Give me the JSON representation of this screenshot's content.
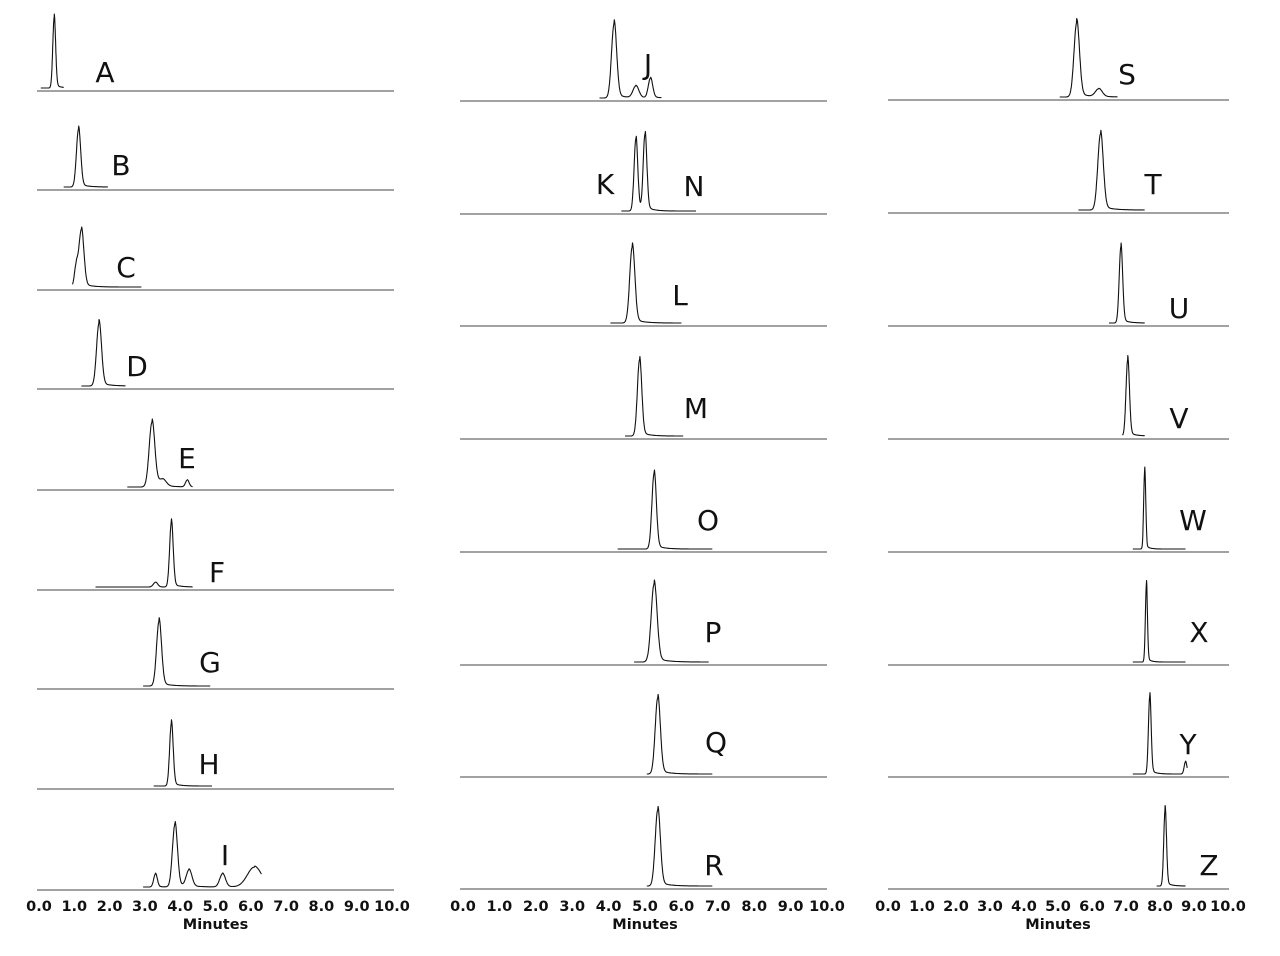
{
  "chart_data": {
    "type": "line",
    "panels": [
      {
        "xlabel": "Minutes",
        "xlim": [
          0,
          10
        ],
        "xticks": [
          "0.0",
          "1.0",
          "2.0",
          "3.0",
          "4.0",
          "5.0",
          "6.0",
          "7.0",
          "8.0",
          "9.0",
          "10.0"
        ],
        "traces": [
          {
            "label": "A",
            "start": 0.05,
            "end": 0.7,
            "peaks": [
              [
                0.43,
                1.0,
                0.04
              ]
            ]
          },
          {
            "label": "B",
            "start": 0.7,
            "end": 1.95,
            "peaks": [
              [
                1.12,
                0.9,
                0.06
              ]
            ]
          },
          {
            "label": "C",
            "start": 0.95,
            "end": 2.9,
            "peaks": [
              [
                1.2,
                0.9,
                0.07
              ],
              [
                1.05,
                0.3,
                0.05
              ]
            ]
          },
          {
            "label": "D",
            "start": 1.2,
            "end": 2.45,
            "peaks": [
              [
                1.7,
                0.95,
                0.07
              ]
            ]
          },
          {
            "label": "E",
            "start": 2.5,
            "end": 4.35,
            "peaks": [
              [
                3.2,
                0.95,
                0.08
              ],
              [
                3.5,
                0.1,
                0.1
              ],
              [
                4.2,
                0.1,
                0.05
              ]
            ]
          },
          {
            "label": "F",
            "start": 1.6,
            "end": 4.35,
            "peaks": [
              [
                3.75,
                0.95,
                0.05
              ],
              [
                3.3,
                0.07,
                0.06
              ]
            ]
          },
          {
            "label": "G",
            "start": 2.95,
            "end": 4.85,
            "peaks": [
              [
                3.4,
                0.95,
                0.07
              ]
            ]
          },
          {
            "label": "H",
            "start": 3.25,
            "end": 4.9,
            "peaks": [
              [
                3.75,
                0.95,
                0.05
              ]
            ]
          },
          {
            "label": "I",
            "start": 2.95,
            "end": 6.3,
            "peaks": [
              [
                3.85,
                0.95,
                0.07
              ],
              [
                3.3,
                0.2,
                0.05
              ],
              [
                4.25,
                0.25,
                0.08
              ],
              [
                5.2,
                0.2,
                0.08
              ],
              [
                6.1,
                0.3,
                0.2
              ]
            ]
          }
        ]
      },
      {
        "xlabel": "Minutes",
        "xlim": [
          0,
          10
        ],
        "xticks": [
          "0.0",
          "1.0",
          "2.0",
          "3.0",
          "4.0",
          "5.0",
          "6.0",
          "7.0",
          "8.0",
          "9.0",
          "10.0"
        ],
        "traces": [
          {
            "label": "J",
            "start": 3.75,
            "end": 5.45,
            "peaks": [
              [
                4.15,
                0.95,
                0.07
              ],
              [
                4.75,
                0.15,
                0.08
              ],
              [
                5.15,
                0.25,
                0.06
              ]
            ]
          },
          {
            "label": "K",
            "start": 4.35,
            "end": 6.4,
            "peaks": [
              [
                4.75,
                0.9,
                0.05
              ],
              [
                5.0,
                0.95,
                0.05
              ]
            ]
          },
          {
            "label": "N",
            "start": 0,
            "end": 0,
            "peaks": []
          },
          {
            "label": "L",
            "start": 4.05,
            "end": 6.0,
            "peaks": [
              [
                4.65,
                0.95,
                0.07
              ]
            ]
          },
          {
            "label": "M",
            "start": 4.45,
            "end": 6.05,
            "peaks": [
              [
                4.85,
                0.95,
                0.06
              ]
            ]
          },
          {
            "label": "O",
            "start": 4.25,
            "end": 6.85,
            "peaks": [
              [
                5.25,
                0.95,
                0.06
              ]
            ]
          },
          {
            "label": "P",
            "start": 4.7,
            "end": 6.75,
            "peaks": [
              [
                5.25,
                0.95,
                0.08
              ]
            ]
          },
          {
            "label": "Q",
            "start": 5.05,
            "end": 6.85,
            "peaks": [
              [
                5.35,
                0.95,
                0.07
              ]
            ]
          },
          {
            "label": "R",
            "start": 5.05,
            "end": 6.85,
            "peaks": [
              [
                5.35,
                0.95,
                0.07
              ]
            ]
          }
        ]
      },
      {
        "xlabel": "Minutes",
        "xlim": [
          0,
          10
        ],
        "xticks": [
          "0.0",
          "1.0",
          "2.0",
          "3.0",
          "4.0",
          "5.0",
          "6.0",
          "7.0",
          "8.0",
          "9.0",
          "10.0"
        ],
        "traces": [
          {
            "label": "S",
            "start": 5.05,
            "end": 6.75,
            "peaks": [
              [
                5.55,
                0.95,
                0.08
              ],
              [
                6.2,
                0.1,
                0.1
              ]
            ]
          },
          {
            "label": "T",
            "start": 5.6,
            "end": 7.55,
            "peaks": [
              [
                6.25,
                0.95,
                0.08
              ]
            ]
          },
          {
            "label": "U",
            "start": 6.5,
            "end": 7.55,
            "peaks": [
              [
                6.85,
                0.95,
                0.05
              ]
            ]
          },
          {
            "label": "V",
            "start": 6.9,
            "end": 7.55,
            "peaks": [
              [
                7.05,
                0.95,
                0.05
              ]
            ]
          },
          {
            "label": "W",
            "start": 7.2,
            "end": 8.75,
            "peaks": [
              [
                7.55,
                0.95,
                0.03
              ]
            ]
          },
          {
            "label": "X",
            "start": 7.2,
            "end": 8.75,
            "peaks": [
              [
                7.6,
                0.95,
                0.03
              ]
            ]
          },
          {
            "label": "Y",
            "start": 7.2,
            "end": 8.8,
            "peaks": [
              [
                7.7,
                0.95,
                0.04
              ],
              [
                8.75,
                0.15,
                0.04
              ]
            ]
          },
          {
            "label": "Z",
            "start": 7.9,
            "end": 8.75,
            "peaks": [
              [
                8.15,
                0.95,
                0.04
              ]
            ]
          }
        ]
      }
    ]
  }
}
